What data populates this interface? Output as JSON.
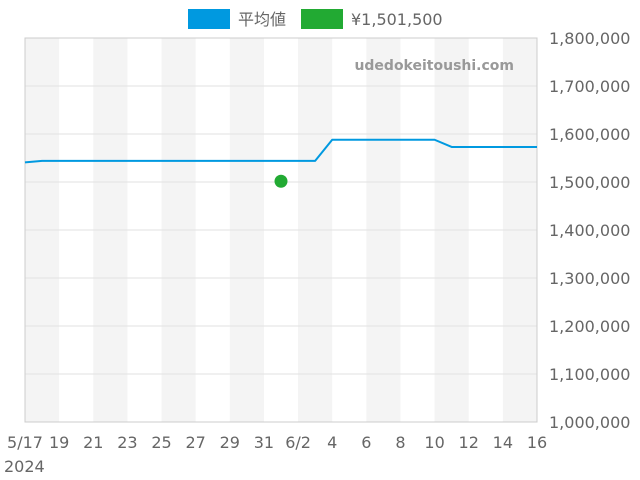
{
  "chart_data": {
    "type": "line",
    "watermark": "udedokeitoushi.com",
    "legend": [
      {
        "label": "平均値",
        "color": "#0099e0",
        "kind": "line"
      },
      {
        "label": "¥1,501,500",
        "color": "#22aa33",
        "kind": "point"
      }
    ],
    "y_axis": {
      "position": "right",
      "min": 1000000,
      "max": 1800000,
      "step": 100000,
      "tick_labels": [
        "1,000,000",
        "1,100,000",
        "1,200,000",
        "1,300,000",
        "1,400,000",
        "1,500,000",
        "1,600,000",
        "1,700,000",
        "1,800,000"
      ]
    },
    "x_axis": {
      "start": "2024-05-17",
      "end": "2024-06-16",
      "tick_labels": [
        {
          "date": "2024-05-17",
          "label": "5/17"
        },
        {
          "date": "2024-05-19",
          "label": "19"
        },
        {
          "date": "2024-05-21",
          "label": "21"
        },
        {
          "date": "2024-05-23",
          "label": "23"
        },
        {
          "date": "2024-05-25",
          "label": "25"
        },
        {
          "date": "2024-05-27",
          "label": "27"
        },
        {
          "date": "2024-05-29",
          "label": "29"
        },
        {
          "date": "2024-05-31",
          "label": "31"
        },
        {
          "date": "2024-06-02",
          "label": "6/2"
        },
        {
          "date": "2024-06-04",
          "label": "4"
        },
        {
          "date": "2024-06-06",
          "label": "6"
        },
        {
          "date": "2024-06-08",
          "label": "8"
        },
        {
          "date": "2024-06-10",
          "label": "10"
        },
        {
          "date": "2024-06-12",
          "label": "12"
        },
        {
          "date": "2024-06-14",
          "label": "14"
        },
        {
          "date": "2024-06-16",
          "label": "16"
        }
      ],
      "year_label": "2024"
    },
    "bands": "alternating gray columns",
    "grid": true,
    "series": [
      {
        "name": "平均値",
        "color": "#0099e0",
        "points": [
          {
            "x": "2024-05-17",
            "y": 1541000
          },
          {
            "x": "2024-05-18",
            "y": 1544000
          },
          {
            "x": "2024-06-03",
            "y": 1544000
          },
          {
            "x": "2024-06-04",
            "y": 1588000
          },
          {
            "x": "2024-06-10",
            "y": 1588000
          },
          {
            "x": "2024-06-11",
            "y": 1573000
          },
          {
            "x": "2024-06-16",
            "y": 1573000
          }
        ]
      },
      {
        "name": "¥1,501,500",
        "color": "#22aa33",
        "type": "scatter",
        "points": [
          {
            "x": "2024-06-01",
            "y": 1501500
          }
        ]
      }
    ]
  }
}
